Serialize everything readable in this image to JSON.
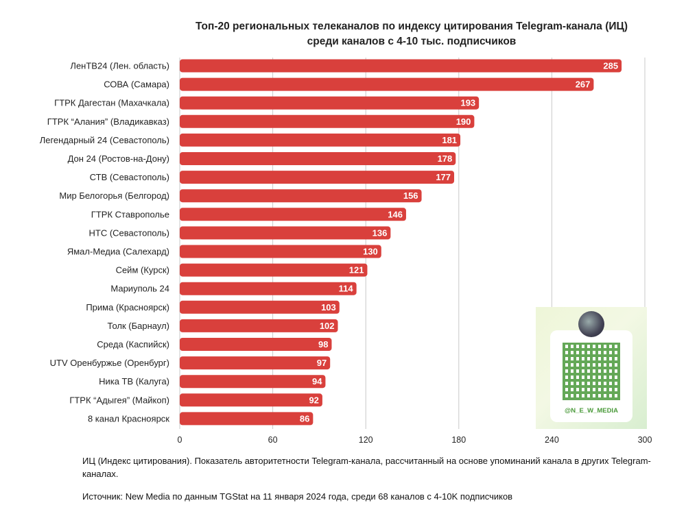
{
  "title_line1": "Топ-20 региональных телеканалов по индексу цитирования Telegram-канала (ИЦ)",
  "title_line2": "среди каналов с 4-10 тыс. подписчиков",
  "qr_handle": "@N_E_W_MEDIA",
  "footnote": "ИЦ (Индекс цитирования). Показатель авторитетности Telegram-канала, рассчитанный на основе упоминаний канала в других Telegram-каналах.",
  "source": "Источник: New Media по данным TGStat на 11 января 2024 года, среди 68 каналов с 4-10K подписчиков",
  "colors": {
    "bar": "#d9403c",
    "grid": "#c8c8c8"
  },
  "chart_data": {
    "type": "bar",
    "orientation": "horizontal",
    "categories": [
      "ЛенТВ24 (Лен. область)",
      "СОВА (Самара)",
      "ГТРК Дагестан (Махачкала)",
      "ГТРК “Алания” (Владикавказ)",
      "Легендарный 24 (Севастополь)",
      "Дон 24 (Ростов-на-Дону)",
      "СТВ (Севастополь)",
      "Мир Белогорья (Белгород)",
      "ГТРК Ставрополье",
      "НТС (Севастополь)",
      "Ямал-Медиа (Салехард)",
      "Сейм (Курск)",
      "Мариуполь 24",
      "Прима (Красноярск)",
      "Толк (Барнаул)",
      "Среда (Каспийск)",
      "UTV Оренбуржье (Оренбург)",
      "Ника ТВ (Калуга)",
      "ГТРК “Адыгея” (Майкоп)",
      "8 канал Красноярск"
    ],
    "values": [
      285,
      267,
      193,
      190,
      181,
      178,
      177,
      156,
      146,
      136,
      130,
      121,
      114,
      103,
      102,
      98,
      97,
      94,
      92,
      86
    ],
    "xlim": [
      0,
      300
    ],
    "xticks": [
      "0",
      "60",
      "120",
      "180",
      "240",
      "300"
    ],
    "grid": true
  }
}
